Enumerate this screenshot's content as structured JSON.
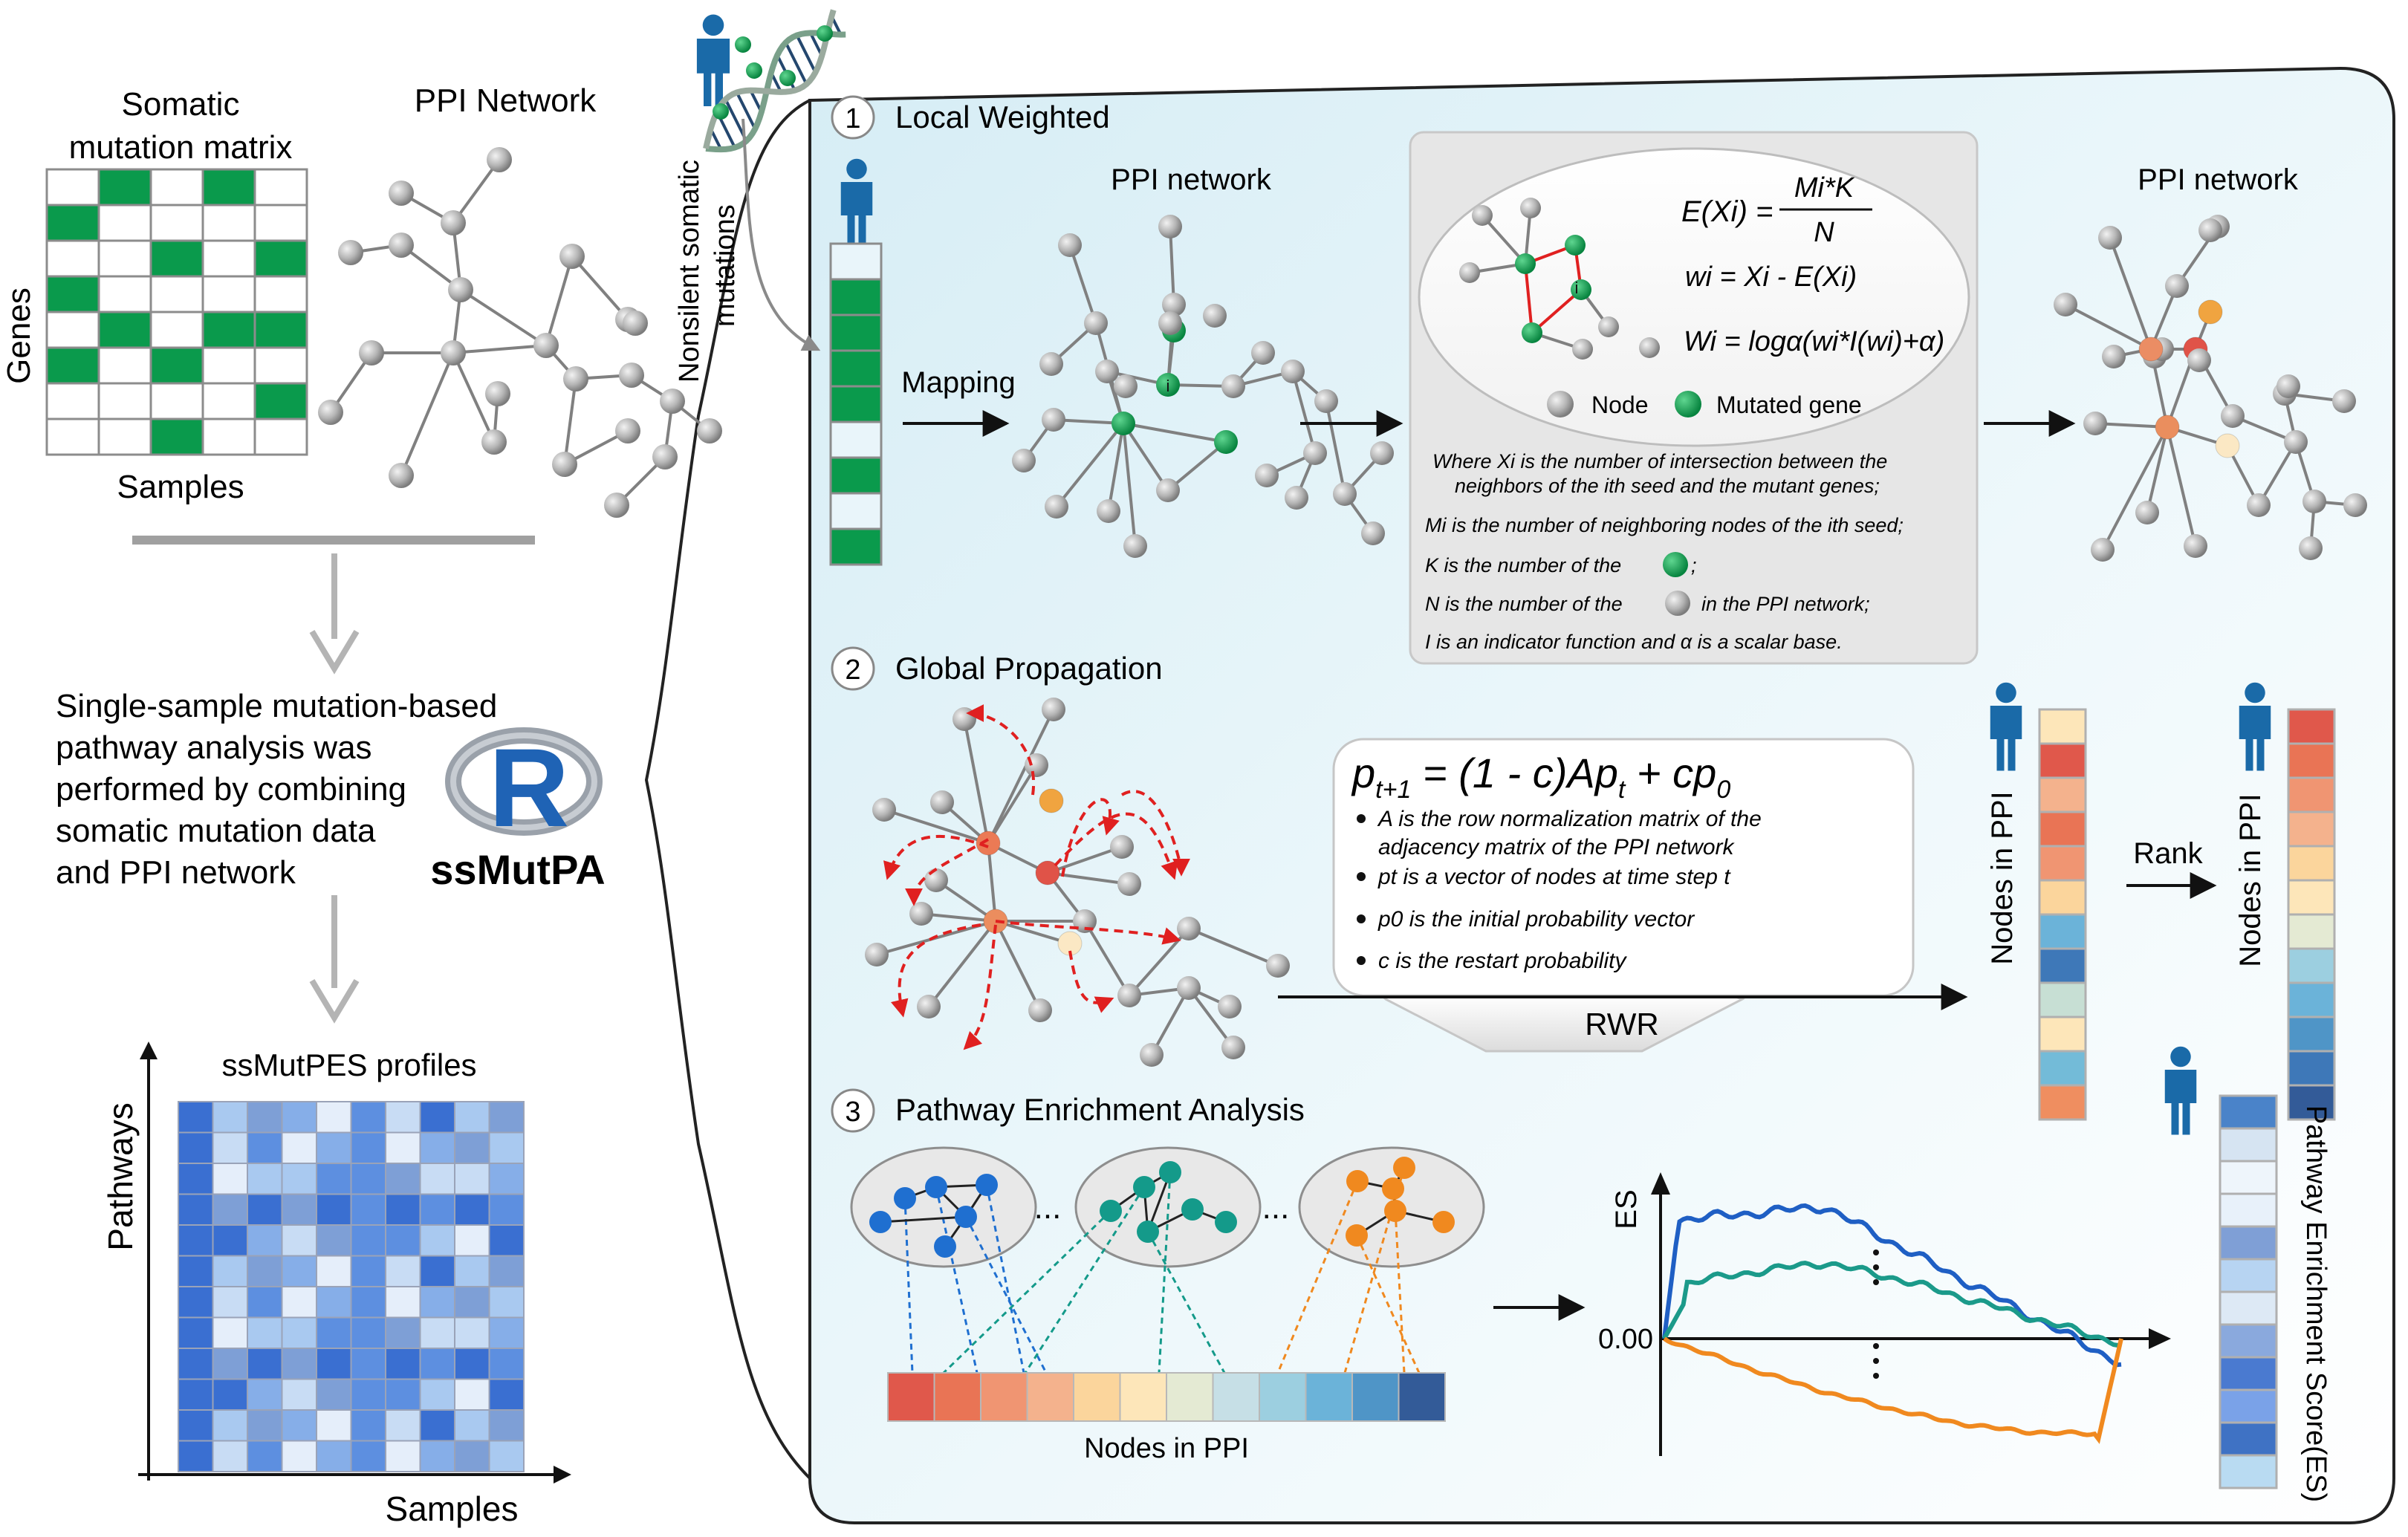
{
  "left": {
    "matrix_title_1": "Somatic",
    "matrix_title_2": "mutation matrix",
    "genes_label": "Genes",
    "samples_label": "Samples",
    "ppi_title": "PPI Network",
    "description_lines": [
      "Single-sample mutation-based",
      "pathway analysis was",
      "performed by combining",
      "somatic mutation data",
      "and PPI network"
    ],
    "tool_name": "ssMutPA",
    "logo_letter": "R",
    "profiles_title": "ssMutPES profiles",
    "pathways_label": "Pathways",
    "samples_axis_label": "Samples",
    "nonsilent_line1": "Nonsilent somatic",
    "nonsilent_line2": "mutations"
  },
  "step1": {
    "num": "1",
    "title": "Local Weighted",
    "ppi_left": "PPI network",
    "ppi_right": "PPI network",
    "mapping": "Mapping",
    "node_label": "i",
    "eq1_lhs": "E(Xi) =",
    "eq1_num": "Mi*K",
    "eq1_den": "N",
    "eq2": "wi = Xi - E(Xi)",
    "eq3": "Wi = logα(wi*I(wi)+α)",
    "legend_node": "Node",
    "legend_mut": "Mutated gene",
    "notes": [
      "Where Xi is the number of intersection between the",
      "neighbors of the ith seed  and the mutant genes;",
      "Mi is the number of neighboring nodes of the ith seed;",
      "K is the number of the",
      "N is the number of the",
      "in the PPI network;",
      "I is an indicator function and α is a scalar base."
    ]
  },
  "step2": {
    "num": "2",
    "title": "Global Propagation",
    "eq": "p t+1 = (1 - c)Ap t + cp 0",
    "bullets": [
      "A is the row normalization matrix of the",
      "adjacency matrix of the PPI network",
      "pt is a vector of nodes at time step t",
      "p0 is the initial probability vector",
      "c is the restart probability"
    ],
    "rwr": "RWR",
    "nodes_in_ppi": "Nodes in PPI",
    "nodes_in_ppi_2": "Nodes in PPI",
    "rank": "Rank"
  },
  "step3": {
    "num": "3",
    "title": "Pathway Enrichment Analysis",
    "dots": "...",
    "nodes_in_ppi": "Nodes in PPI",
    "es_label": "ES",
    "zero_tick": "0.00",
    "es_vertical": "Pathway Enrichment Score(ES)"
  },
  "colors": {
    "panel_bg": "#e3f2f8",
    "mutated": "#0a9a4c",
    "node": "#a6a6a6",
    "blue_line": "#1f5fc4",
    "teal_line": "#1b9a8a",
    "orange_line": "#f0891f",
    "red_arrow": "#e02020"
  }
}
